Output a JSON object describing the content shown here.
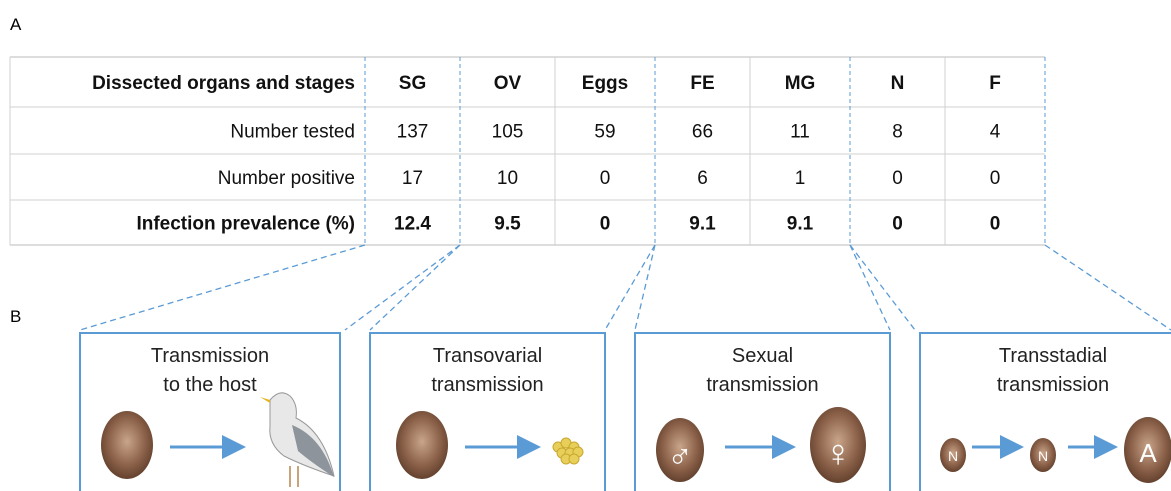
{
  "panels": {
    "a": "A",
    "b": "B"
  },
  "table": {
    "header": [
      "Dissected organs and stages",
      "SG",
      "OV",
      "Eggs",
      "FE",
      "MG",
      "N",
      "F"
    ],
    "rows": [
      [
        "Number tested",
        "137",
        "105",
        "59",
        "66",
        "11",
        "8",
        "4"
      ],
      [
        "Number positive",
        "17",
        "10",
        "0",
        "6",
        "1",
        "0",
        "0"
      ],
      [
        "Infection prevalence (%)",
        "12.4",
        "9.5",
        "0",
        "9.1",
        "9.1",
        "0",
        "0"
      ]
    ]
  },
  "boxes": [
    {
      "title": [
        "Transmission",
        "to the host"
      ]
    },
    {
      "title": [
        "Transovarial",
        "transmission"
      ]
    },
    {
      "title": [
        "Sexual",
        "transmission"
      ],
      "icons": [
        "♂",
        "♀"
      ]
    },
    {
      "title": [
        "Transstadial",
        "transmission"
      ],
      "icons": [
        "N",
        "N",
        "A"
      ]
    }
  ]
}
